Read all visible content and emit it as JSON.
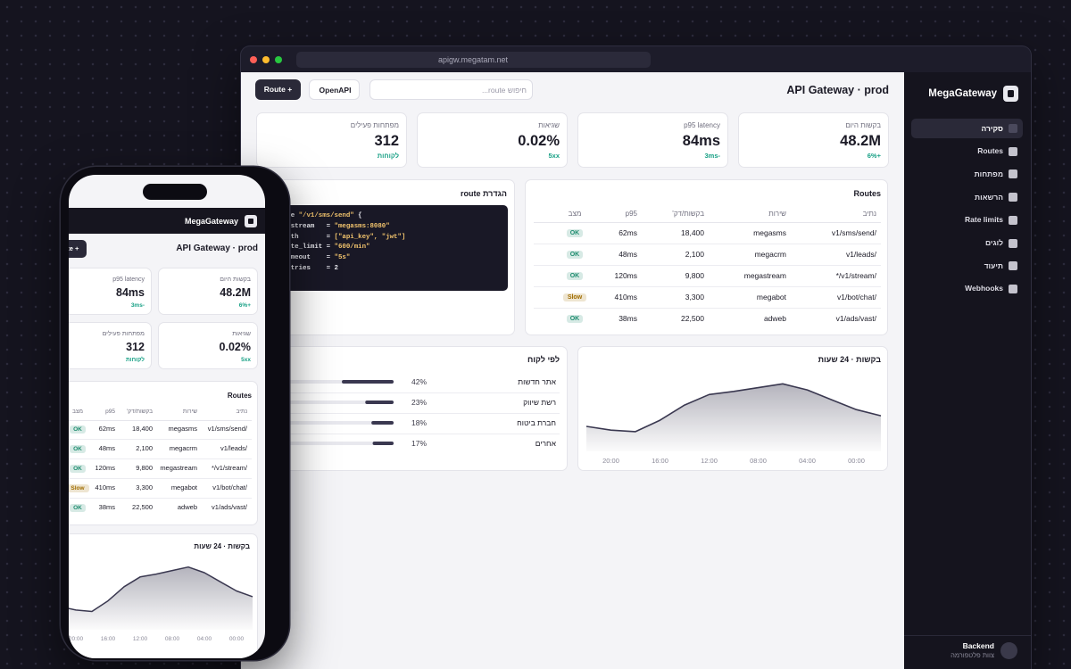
{
  "browser": {
    "url": "apigw.megatam.net"
  },
  "sidebar": {
    "brand": "MegaGateway",
    "nav": [
      "סקירה",
      "Routes",
      "מפתחות",
      "הרשאות",
      "Rate limits",
      "לוגים",
      "תיעוד",
      "Webhooks"
    ],
    "footer": {
      "name": "Backend",
      "team": "צוות פלטפורמה"
    }
  },
  "header": {
    "title": "API Gateway · prod",
    "search_placeholder": "חיפוש route...",
    "buttons": [
      "+ Route",
      "OpenAPI"
    ]
  },
  "stats": [
    {
      "label": "בקשות היום",
      "value": "48.2M",
      "delta": "+6%"
    },
    {
      "label": "p95 latency",
      "value": "84ms",
      "delta": "-3ms"
    },
    {
      "label": "שגיאות",
      "value": "0.02%",
      "delta": "5xx"
    },
    {
      "label": "מפתחות פעילים",
      "value": "312",
      "delta": "לקוחות"
    }
  ],
  "routes": {
    "title": "Routes",
    "columns": [
      "נתיב",
      "שירות",
      "בקשות/דק'",
      "p95",
      "מצב"
    ],
    "rows": [
      [
        "/v1/sms/send",
        "megasms",
        "18,400",
        "62ms",
        "OK"
      ],
      [
        "/v1/leads",
        "megacrm",
        "2,100",
        "48ms",
        "OK"
      ],
      [
        "/v1/stream/*",
        "megastream",
        "9,800",
        "120ms",
        "OK"
      ],
      [
        "/v1/bot/chat",
        "megabot",
        "3,300",
        "410ms",
        "Slow"
      ],
      [
        "/v1/ads/vast",
        "adweb",
        "22,500",
        "38ms",
        "OK"
      ]
    ],
    "status_colors": [
      "#1f8c6f",
      "#1f8c6f",
      "#1f8c6f",
      "#a06d00",
      "#1f8c6f"
    ]
  },
  "route_config": {
    "title": "הגדרת route",
    "lines": [
      [
        "route ",
        "\"/v1/sms/send\"",
        " {"
      ],
      [
        "  upstream   = ",
        "\"megasms:8080\""
      ],
      [
        "  auth       = ",
        "[\"api_key\", \"jwt\"]"
      ],
      [
        "  rate_limit = ",
        "\"600/min\""
      ],
      [
        "  timeout    = ",
        "\"5s\""
      ],
      [
        "  retries    = ",
        "2"
      ]
    ]
  },
  "chart_data": [
    {
      "type": "area",
      "title": "בקשות · 24 שעות",
      "x": [
        -2,
        0,
        2,
        4,
        6,
        8,
        10,
        12,
        14,
        16,
        18,
        20,
        22
      ],
      "values": [
        47,
        55,
        68,
        81,
        89,
        84,
        79,
        75,
        61,
        41,
        26,
        28,
        33
      ],
      "xlim": [
        -2,
        22
      ],
      "ylim": [
        0,
        100
      ],
      "xticks": [
        {
          "value": 0,
          "label": "00:00"
        },
        {
          "value": 4,
          "label": "04:00"
        },
        {
          "value": 8,
          "label": "08:00"
        },
        {
          "value": 12,
          "label": "12:00"
        },
        {
          "value": 16,
          "label": "16:00"
        },
        {
          "value": 20,
          "label": "20:00"
        }
      ],
      "color": "#3a3850"
    },
    {
      "type": "hbar",
      "title": "לפי לקוח",
      "categories": [
        "אתר חדשות",
        "רשת שיווק",
        "חברת ביטוח",
        "אחרים"
      ],
      "values": [
        42,
        23,
        18,
        17
      ],
      "value_labels": [
        "42%",
        "23%",
        "18%",
        "17%"
      ],
      "xlim": [
        0,
        100
      ],
      "color": "#3a3850"
    }
  ]
}
